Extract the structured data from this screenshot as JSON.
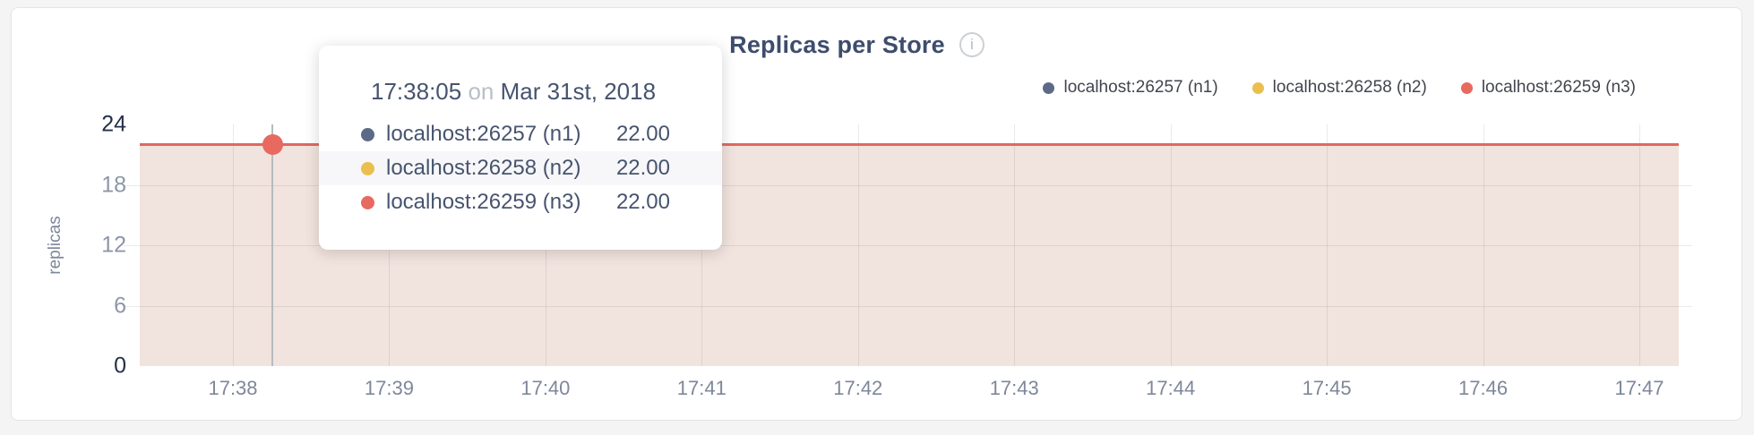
{
  "header": {
    "title": "Replicas per Store",
    "info_glyph": "i"
  },
  "legend": {
    "items": [
      {
        "label": "localhost:26257 (n1)",
        "color": "#5b6a87"
      },
      {
        "label": "localhost:26258 (n2)",
        "color": "#eabf4e"
      },
      {
        "label": "localhost:26259 (n3)",
        "color": "#e8695f"
      }
    ]
  },
  "tooltip": {
    "time": "17:38:05",
    "connector": "on",
    "date": "Mar 31st, 2018",
    "rows": [
      {
        "label": "localhost:26257 (n1)",
        "value": "22.00",
        "color": "#5b6a87"
      },
      {
        "label": "localhost:26258 (n2)",
        "value": "22.00",
        "color": "#eabf4e"
      },
      {
        "label": "localhost:26259 (n3)",
        "value": "22.00",
        "color": "#e8695f"
      }
    ]
  },
  "chart_data": {
    "type": "area",
    "title": "Replicas per Store",
    "ylabel": "replicas",
    "xlabel": "",
    "x_ticks": [
      "17:38",
      "17:39",
      "17:40",
      "17:41",
      "17:42",
      "17:43",
      "17:44",
      "17:45",
      "17:46",
      "17:47"
    ],
    "y_ticks": [
      0,
      6,
      12,
      18,
      24
    ],
    "y_ticks_emphasized": [
      0,
      24
    ],
    "ylim": [
      0,
      24
    ],
    "grid": true,
    "legend_position": "top-right",
    "line_color": "#e0695e",
    "fill_color": "#f1e3dd",
    "series": [
      {
        "name": "localhost:26257 (n1)",
        "color": "#5b6a87",
        "values": [
          22,
          22,
          22,
          22,
          22,
          22,
          22,
          22,
          22,
          22
        ]
      },
      {
        "name": "localhost:26258 (n2)",
        "color": "#eabf4e",
        "values": [
          22,
          22,
          22,
          22,
          22,
          22,
          22,
          22,
          22,
          22
        ]
      },
      {
        "name": "localhost:26259 (n3)",
        "color": "#e8695f",
        "values": [
          22,
          22,
          22,
          22,
          22,
          22,
          22,
          22,
          22,
          22
        ]
      }
    ],
    "hovered_point": {
      "time": "17:38:05",
      "date": "Mar 31st, 2018",
      "value": 22.0
    }
  }
}
